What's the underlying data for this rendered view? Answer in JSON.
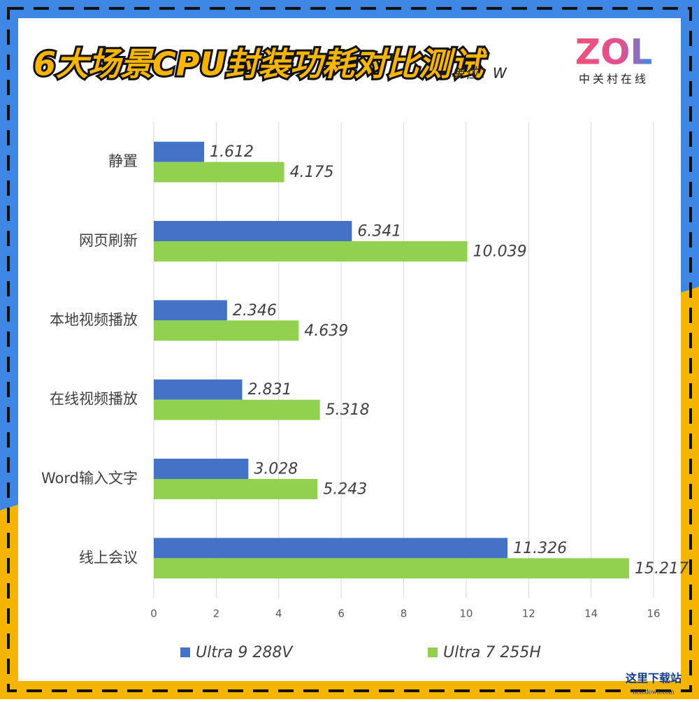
{
  "chart_data": {
    "type": "barh",
    "title": "6大场景CPU封装功耗对比测试",
    "subtitle": "单位：W",
    "categories": [
      "静置",
      "网页刷新",
      "本地视频播放",
      "在线视频播放",
      "Word输入文字",
      "线上会议"
    ],
    "series": [
      {
        "name": "Ultra 9 288V",
        "color": "#4472c4",
        "values": [
          1.612,
          6.341,
          2.346,
          2.831,
          3.028,
          11.326
        ]
      },
      {
        "name": "Ultra 7 255H",
        "color": "#92d050",
        "values": [
          4.175,
          10.039,
          4.639,
          5.318,
          5.243,
          15.217
        ]
      }
    ],
    "xlim": [
      0,
      16
    ],
    "xticks": [
      0,
      2,
      4,
      6,
      8,
      10,
      12,
      14,
      16
    ],
    "grid": true,
    "legend": "bottom"
  },
  "logo": {
    "text": "ZOL",
    "subtext": "中关村在线"
  },
  "watermark": {
    "text": "这里下载站",
    "url": "heredown.com"
  }
}
